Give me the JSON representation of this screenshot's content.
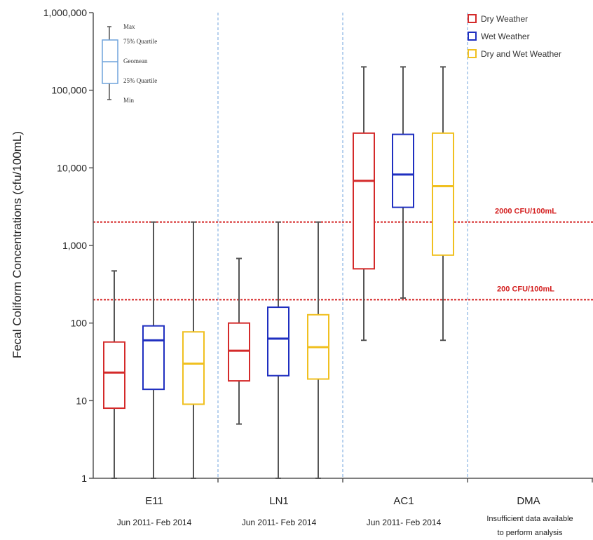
{
  "chart_data": {
    "type": "box",
    "y_scale": "log",
    "ylim": [
      1,
      1000000
    ],
    "ylabel": "Fecal Coliform Concentrations  (cfu/100mL)",
    "y_ticks": [
      1,
      10,
      100,
      1000,
      10000,
      100000,
      1000000
    ],
    "y_tick_labels": [
      "1",
      "10",
      "100",
      "1,000",
      "10,000",
      "100,000",
      "1,000,000"
    ],
    "groups": [
      {
        "name": "E11",
        "date": "Jun 2011- Feb 2014",
        "note": []
      },
      {
        "name": "LN1",
        "date": "Jun 2011- Feb 2014",
        "note": []
      },
      {
        "name": "AC1",
        "date": "Jun 2011- Feb 2014",
        "note": []
      },
      {
        "name": "DMA",
        "date": "",
        "note": [
          "Insufficient data available",
          "to perform analysis"
        ]
      }
    ],
    "series": [
      {
        "name": "Dry Weather",
        "color": "#d42a2a",
        "boxes": [
          {
            "group": "E11",
            "min": 1,
            "q1": 8,
            "geomean": 23,
            "q3": 57,
            "max": 470
          },
          {
            "group": "LN1",
            "min": 5,
            "q1": 18,
            "geomean": 44,
            "q3": 100,
            "max": 680
          },
          {
            "group": "AC1",
            "min": 60,
            "q1": 500,
            "geomean": 6800,
            "q3": 28000,
            "max": 200000
          }
        ]
      },
      {
        "name": "Wet Weather",
        "color": "#1f2fc0",
        "boxes": [
          {
            "group": "E11",
            "min": 1,
            "q1": 14,
            "geomean": 60,
            "q3": 92,
            "max": 2000
          },
          {
            "group": "LN1",
            "min": 1,
            "q1": 21,
            "geomean": 63,
            "q3": 160,
            "max": 2000
          },
          {
            "group": "AC1",
            "min": 210,
            "q1": 3100,
            "geomean": 8200,
            "q3": 27000,
            "max": 200000
          }
        ]
      },
      {
        "name": "Dry and Wet Weather",
        "color": "#f0c020",
        "boxes": [
          {
            "group": "E11",
            "min": 1,
            "q1": 9,
            "geomean": 30,
            "q3": 77,
            "max": 2000
          },
          {
            "group": "LN1",
            "min": 1,
            "q1": 19,
            "geomean": 49,
            "q3": 128,
            "max": 2000
          },
          {
            "group": "AC1",
            "min": 60,
            "q1": 750,
            "geomean": 5800,
            "q3": 28000,
            "max": 200000
          }
        ]
      }
    ],
    "reference_lines": [
      {
        "value": 2000,
        "label": "2000 CFU/100mL",
        "color": "#d42020"
      },
      {
        "value": 200,
        "label": "200 CFU/100mL",
        "color": "#d42020"
      }
    ],
    "legend": {
      "placement": "top-right"
    },
    "key_labels": [
      "Max",
      "75% Quartile",
      "Geomean",
      "25% Quartile",
      "Min"
    ],
    "grid": false
  }
}
